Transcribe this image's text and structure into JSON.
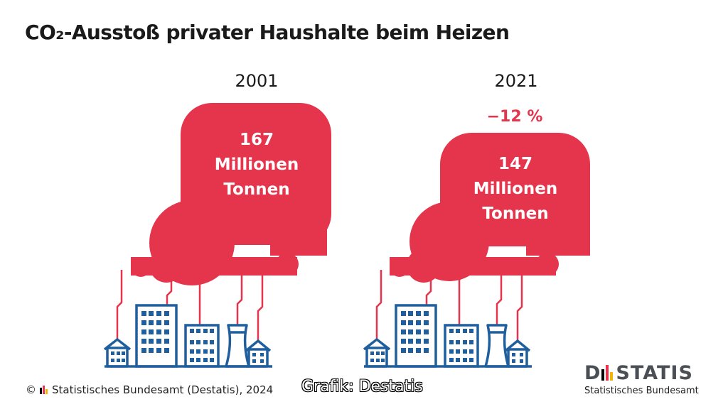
{
  "title": "CO₂-Ausstoß privater Haushalte beim Heizen",
  "panels": [
    {
      "year": "2001",
      "value": "167",
      "unit_line1": "Millionen",
      "unit_line2": "Tonnen"
    },
    {
      "year": "2021",
      "change": "−12 %",
      "value": "147",
      "unit_line1": "Millionen",
      "unit_line2": "Tonnen"
    }
  ],
  "footer": {
    "copyright": "©",
    "source": "Statistisches Bundesamt (Destatis), 2024",
    "credit": "Grafik: Destatis"
  },
  "brand": {
    "name_left": "D",
    "name_right": "STATIS",
    "subtitle": "Statistisches Bundesamt"
  },
  "colors": {
    "cloud": "#e5354d",
    "pipes": "#e5354d",
    "buildings": "#1f5f9e",
    "title": "#1a1a1a"
  },
  "icons": [
    "emission-cloud-icon",
    "city-buildings-icon",
    "destatis-logo"
  ]
}
